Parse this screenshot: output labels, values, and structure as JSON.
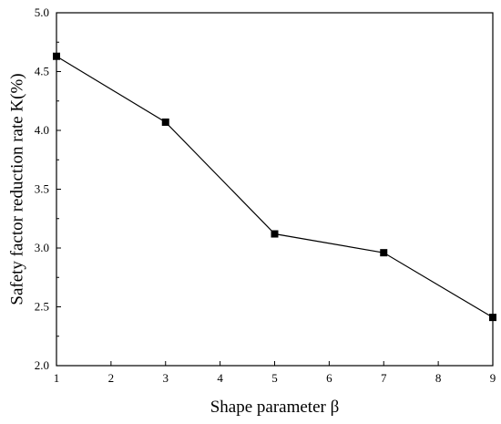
{
  "chart_data": {
    "type": "line",
    "title": "",
    "xlabel": "Shape parameter β",
    "ylabel": "Safety factor reduction rate K(%)",
    "xlim": [
      1,
      9
    ],
    "ylim": [
      2.0,
      5.0
    ],
    "x_ticks": [
      1,
      2,
      3,
      4,
      5,
      6,
      7,
      8,
      9
    ],
    "y_ticks": [
      "2.0",
      "2.5",
      "3.0",
      "3.5",
      "4.0",
      "4.5",
      "5.0"
    ],
    "grid": false,
    "legend": "none",
    "series": [
      {
        "marker": "square",
        "color": "#000000",
        "x": [
          1,
          3,
          5,
          7,
          9
        ],
        "y": [
          4.63,
          4.07,
          3.12,
          2.96,
          2.41
        ]
      }
    ]
  }
}
